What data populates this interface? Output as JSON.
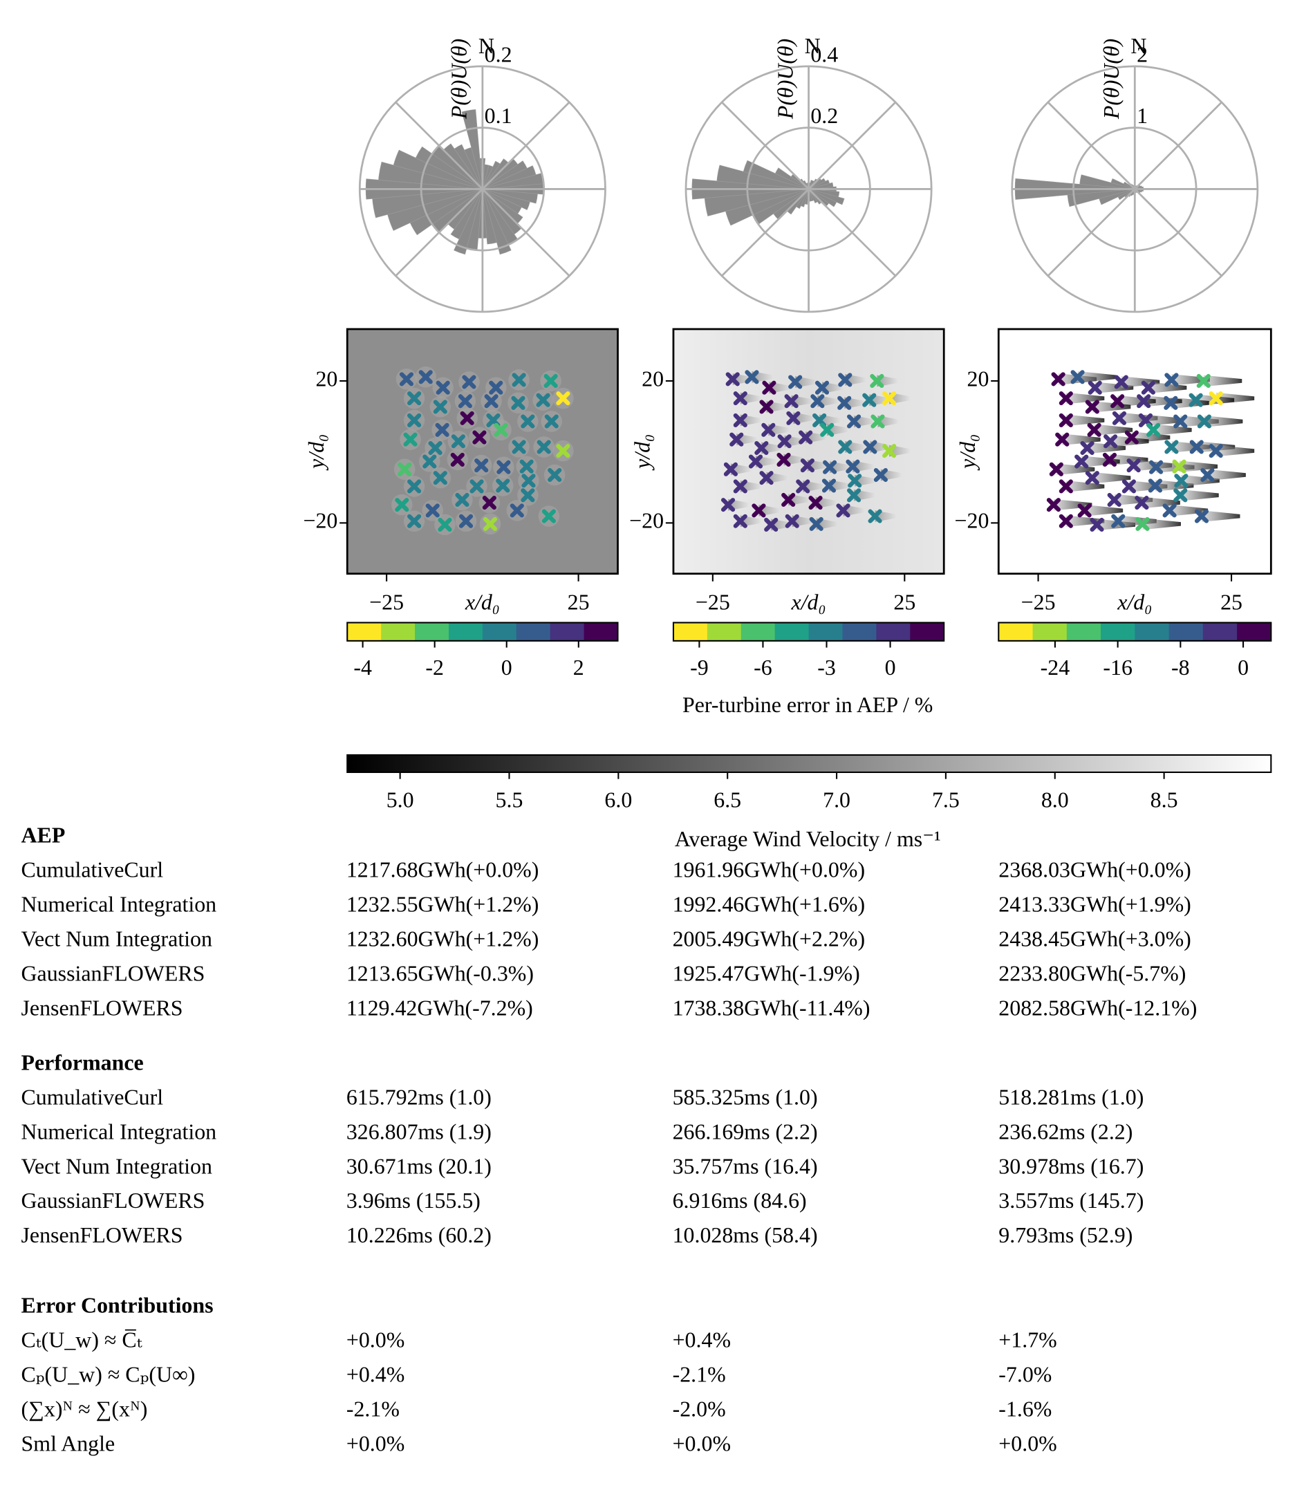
{
  "chart_data": [
    {
      "type": "polar-bar",
      "ylabel": "P(θ)U(θ)",
      "direction_label": "N",
      "rlim": [
        0,
        0.2
      ],
      "rticks": [
        0.1,
        0.2
      ],
      "color": "#8a8a8a",
      "theta": [
        0,
        10,
        20,
        30,
        40,
        50,
        60,
        70,
        80,
        90,
        100,
        110,
        120,
        130,
        140,
        150,
        160,
        170,
        180,
        190,
        200,
        210,
        220,
        230,
        240,
        250,
        260,
        270,
        280,
        290,
        300,
        310,
        320,
        330,
        340,
        350
      ],
      "values": [
        0.05,
        0.04,
        0.04,
        0.05,
        0.06,
        0.07,
        0.08,
        0.09,
        0.1,
        0.1,
        0.09,
        0.08,
        0.07,
        0.08,
        0.09,
        0.1,
        0.11,
        0.09,
        0.08,
        0.1,
        0.11,
        0.09,
        0.08,
        0.1,
        0.13,
        0.16,
        0.18,
        0.19,
        0.17,
        0.15,
        0.12,
        0.1,
        0.09,
        0.08,
        0.07,
        0.13
      ]
    },
    {
      "type": "polar-bar",
      "ylabel": "P(θ)U(θ)",
      "direction_label": "N",
      "rlim": [
        0,
        0.4
      ],
      "rticks": [
        0.2,
        0.4
      ],
      "color": "#8a8a8a",
      "theta": [
        0,
        10,
        20,
        30,
        40,
        50,
        60,
        70,
        80,
        90,
        100,
        110,
        120,
        130,
        140,
        150,
        160,
        170,
        180,
        190,
        200,
        210,
        220,
        230,
        240,
        250,
        260,
        270,
        280,
        290,
        300,
        310,
        320,
        330,
        340,
        350
      ],
      "values": [
        0.02,
        0.02,
        0.03,
        0.03,
        0.04,
        0.05,
        0.06,
        0.07,
        0.08,
        0.09,
        0.1,
        0.12,
        0.1,
        0.08,
        0.06,
        0.05,
        0.04,
        0.04,
        0.04,
        0.05,
        0.06,
        0.07,
        0.1,
        0.14,
        0.2,
        0.28,
        0.34,
        0.38,
        0.3,
        0.22,
        0.12,
        0.07,
        0.04,
        0.03,
        0.02,
        0.02
      ]
    },
    {
      "type": "polar-bar",
      "ylabel": "P(θ)U(θ)",
      "direction_label": "N",
      "rlim": [
        0,
        2
      ],
      "rticks": [
        1,
        2
      ],
      "color": "#8a8a8a",
      "theta": [
        0,
        10,
        20,
        30,
        40,
        50,
        60,
        70,
        80,
        90,
        100,
        110,
        120,
        130,
        140,
        150,
        160,
        170,
        180,
        190,
        200,
        210,
        220,
        230,
        240,
        250,
        260,
        270,
        280,
        290,
        300,
        310,
        320,
        330,
        340,
        350
      ],
      "values": [
        0.05,
        0.05,
        0.05,
        0.06,
        0.07,
        0.08,
        0.1,
        0.12,
        0.14,
        0.15,
        0.14,
        0.12,
        0.1,
        0.08,
        0.07,
        0.06,
        0.06,
        0.06,
        0.07,
        0.08,
        0.1,
        0.12,
        0.15,
        0.2,
        0.3,
        0.6,
        1.1,
        1.95,
        0.9,
        0.4,
        0.2,
        0.12,
        0.1,
        0.08,
        0.06,
        0.05
      ]
    },
    {
      "type": "scatter",
      "xlabel": "x/d₀",
      "ylabel": "y/d₀",
      "xlim": [
        -35.25,
        35.25
      ],
      "ylim": [
        -34.3,
        34.6
      ],
      "xticks": [
        {
          "value": -25,
          "label": "−25"
        },
        25
      ],
      "yticks": [
        20,
        {
          "value": -20,
          "label": "−20"
        }
      ],
      "values": [
        0.7,
        0.7,
        -0.2,
        0.7,
        0.7,
        0.7,
        -0.2,
        -1.1,
        -4.0,
        -0.2,
        -0.2,
        0.7,
        0.7,
        -0.2,
        -0.2,
        2.6,
        0.7,
        -0.2,
        -2.1,
        -0.2,
        -0.2,
        2.6,
        -1.1,
        -0.2,
        -0.2,
        -0.2,
        -0.2,
        -3.0,
        2.6,
        0.7,
        0.7,
        -0.2,
        -2.1,
        -0.2,
        -0.2,
        -0.2,
        -0.2,
        -0.2,
        -0.2,
        -0.2,
        -1.1,
        0.7,
        -0.2,
        2.6,
        0.7,
        -1.1,
        -0.2,
        -1.1,
        0.7,
        -3.0,
        -0.2
      ],
      "colorbar": {
        "lim": [
          -4.43,
          3.09
        ],
        "ticks": [
          -4,
          -2,
          0,
          2
        ],
        "colors": [
          "#fde725",
          "#a0da39",
          "#4ac16d",
          "#1fa187",
          "#277f8e",
          "#365c8d",
          "#46327e",
          "#440154"
        ]
      }
    },
    {
      "type": "scatter",
      "xlabel": "x/d₀",
      "ylabel": "y/d₀",
      "xlim": [
        -35.25,
        35.25
      ],
      "ylim": [
        -34.3,
        34.6
      ],
      "xticks": [
        {
          "value": -25,
          "label": "−25"
        },
        25
      ],
      "yticks": [
        20,
        {
          "value": -20,
          "label": "−20"
        }
      ],
      "values": [
        0.1,
        -1.5,
        0.1,
        1.7,
        -1.5,
        -1.5,
        -1.5,
        -6.2,
        -9.5,
        -3.0,
        -1.5,
        -1.5,
        0.1,
        1.7,
        0.1,
        0.1,
        0.1,
        -3.0,
        -4.6,
        -1.5,
        -6.2,
        0.1,
        0.1,
        0.1,
        0.1,
        -3.0,
        -1.5,
        -8.0,
        1.7,
        0.1,
        -1.5,
        -1.5,
        0.1,
        0.1,
        0.1,
        0.1,
        0.1,
        -1.5,
        -3.0,
        -1.5,
        0.1,
        1.7,
        1.7,
        1.7,
        0.1,
        -3.0,
        0.1,
        0.1,
        0.1,
        -1.5,
        -3.0
      ],
      "colorbar": {
        "lim": [
          -10.22,
          2.53
        ],
        "ticks": [
          -9,
          -6,
          -3,
          0
        ],
        "colors": [
          "#fde725",
          "#a0da39",
          "#4ac16d",
          "#1fa187",
          "#277f8e",
          "#365c8d",
          "#46327e",
          "#440154"
        ]
      }
    },
    {
      "type": "scatter",
      "xlabel": "x/d₀",
      "ylabel": "y/d₀",
      "xlim": [
        -35.25,
        35.25
      ],
      "ylim": [
        -34.3,
        34.6
      ],
      "xticks": [
        {
          "value": -25,
          "label": "−25"
        },
        25
      ],
      "yticks": [
        20,
        {
          "value": -20,
          "label": "−20"
        }
      ],
      "values": [
        1.3,
        -7.4,
        1.3,
        -3,
        -3,
        -3,
        -7.4,
        -20.4,
        -29,
        -11.7,
        -7.4,
        -3,
        1.3,
        1.3,
        1.3,
        -3,
        1.3,
        -3,
        -16,
        -7.4,
        -11.7,
        1.3,
        1.3,
        -3,
        -3,
        -11.7,
        -7.4,
        -7.4,
        1.3,
        -3,
        -7.4,
        -24.7,
        1.3,
        -3,
        -3,
        1.3,
        -3,
        -7.4,
        -11.7,
        -7.4,
        1.3,
        1.3,
        -3,
        -3,
        -7.4,
        -7.4,
        1.3,
        -3,
        -7.4,
        -20.4,
        -11.7
      ],
      "colorbar": {
        "lim": [
          -31.2,
          3.55
        ],
        "ticks": [
          -24,
          -16,
          -8,
          0
        ],
        "colors": [
          "#fde725",
          "#a0da39",
          "#4ac16d",
          "#1fa187",
          "#277f8e",
          "#365c8d",
          "#46327e",
          "#440154"
        ]
      }
    }
  ],
  "turbine_layout": {
    "x": [
      -19.8,
      -14.8,
      -17.8,
      -10.3,
      -3.5,
      3.5,
      9.5,
      17.8,
      21.0,
      15.8,
      9.3,
      2.3,
      -4.5,
      -11.0,
      -17.8,
      -4.0,
      -10.5,
      2.8,
      4.8,
      11.8,
      18.0,
      -0.8,
      -18.8,
      -12.3,
      -6.3,
      9.5,
      16.0,
      21.0,
      -6.5,
      -0.3,
      5.5,
      11.5,
      -20.3,
      -13.8,
      -11.0,
      -17.8,
      -1.5,
      5.3,
      12.0,
      18.8,
      -21.0,
      -13.0,
      -5.3,
      1.8,
      9.0,
      17.3,
      -17.8,
      -9.8,
      -4.3,
      2.0,
      11.8
    ],
    "y": [
      20.5,
      21.1,
      15.1,
      18.1,
      19.7,
      18.1,
      20.3,
      20.0,
      15.1,
      14.6,
      13.8,
      14.3,
      14.3,
      12.7,
      8.9,
      9.5,
      6.2,
      8.9,
      6.2,
      8.6,
      8.6,
      4.1,
      3.5,
      1.1,
      3.0,
      1.4,
      1.4,
      0.3,
      -2.2,
      -3.8,
      -4.3,
      -4.1,
      -4.9,
      -2.7,
      -7.3,
      -9.7,
      -9.7,
      -9.5,
      -8.1,
      -6.5,
      -14.9,
      -16.5,
      -13.5,
      -14.3,
      -16.5,
      -18.1,
      -19.5,
      -20.5,
      -19.5,
      -20.3,
      -12.2
    ]
  },
  "error_colorbar_label": "Per-turbine error in AEP / %",
  "velocity_colorbar": {
    "label": "Average Wind Velocity / ms⁻¹",
    "lim": [
      4.758,
      8.99
    ],
    "ticks": [
      {
        "value": 5,
        "label": "5.0"
      },
      {
        "value": 5.5,
        "label": "5.5"
      },
      {
        "value": 6,
        "label": "6.0"
      },
      {
        "value": 6.5,
        "label": "6.5"
      },
      {
        "value": 7,
        "label": "7.0"
      },
      {
        "value": 7.5,
        "label": "7.5"
      },
      {
        "value": 8,
        "label": "8.0"
      },
      {
        "value": 8.5,
        "label": "8.5"
      }
    ]
  },
  "table": {
    "sections": [
      {
        "title": "AEP",
        "rows": [
          [
            "CumulativeCurl",
            "1217.68GWh(+0.0%)",
            "1961.96GWh(+0.0%)",
            "2368.03GWh(+0.0%)"
          ],
          [
            "Numerical Integration",
            "1232.55GWh(+1.2%)",
            "1992.46GWh(+1.6%)",
            "2413.33GWh(+1.9%)"
          ],
          [
            "Vect Num Integration",
            "1232.60GWh(+1.2%)",
            "2005.49GWh(+2.2%)",
            "2438.45GWh(+3.0%)"
          ],
          [
            "GaussianFLOWERS",
            "1213.65GWh(-0.3%)",
            "1925.47GWh(-1.9%)",
            "2233.80GWh(-5.7%)"
          ],
          [
            "JensenFLOWERS",
            "1129.42GWh(-7.2%)",
            "1738.38GWh(-11.4%)",
            "2082.58GWh(-12.1%)"
          ]
        ]
      },
      {
        "title": "Performance",
        "rows": [
          [
            "CumulativeCurl",
            "615.792ms (1.0)",
            "585.325ms (1.0)",
            "518.281ms (1.0)"
          ],
          [
            "Numerical Integration",
            "326.807ms (1.9)",
            "266.169ms (2.2)",
            "236.62ms (2.2)"
          ],
          [
            "Vect Num Integration",
            "30.671ms (20.1)",
            "35.757ms (16.4)",
            "30.978ms (16.7)"
          ],
          [
            "GaussianFLOWERS",
            "3.96ms (155.5)",
            "6.916ms (84.6)",
            "3.557ms (145.7)"
          ],
          [
            "JensenFLOWERS",
            "10.226ms (60.2)",
            "10.028ms (58.4)",
            "9.793ms (52.9)"
          ]
        ]
      },
      {
        "title": "Error Contributions",
        "rows": [
          [
            "Cₜ(U_w) ≈ C̅ₜ",
            "+0.0%",
            "+0.4%",
            "+1.7%"
          ],
          [
            "Cₚ(U_w) ≈ Cₚ(U∞)",
            "+0.4%",
            "-2.1%",
            "-7.0%"
          ],
          [
            "(∑x)ᴺ ≈ ∑(xᴺ)",
            "-2.1%",
            "-2.0%",
            "-1.6%"
          ],
          [
            "Sml Angle",
            "+0.0%",
            "+0.0%",
            "+0.0%"
          ]
        ]
      }
    ]
  }
}
